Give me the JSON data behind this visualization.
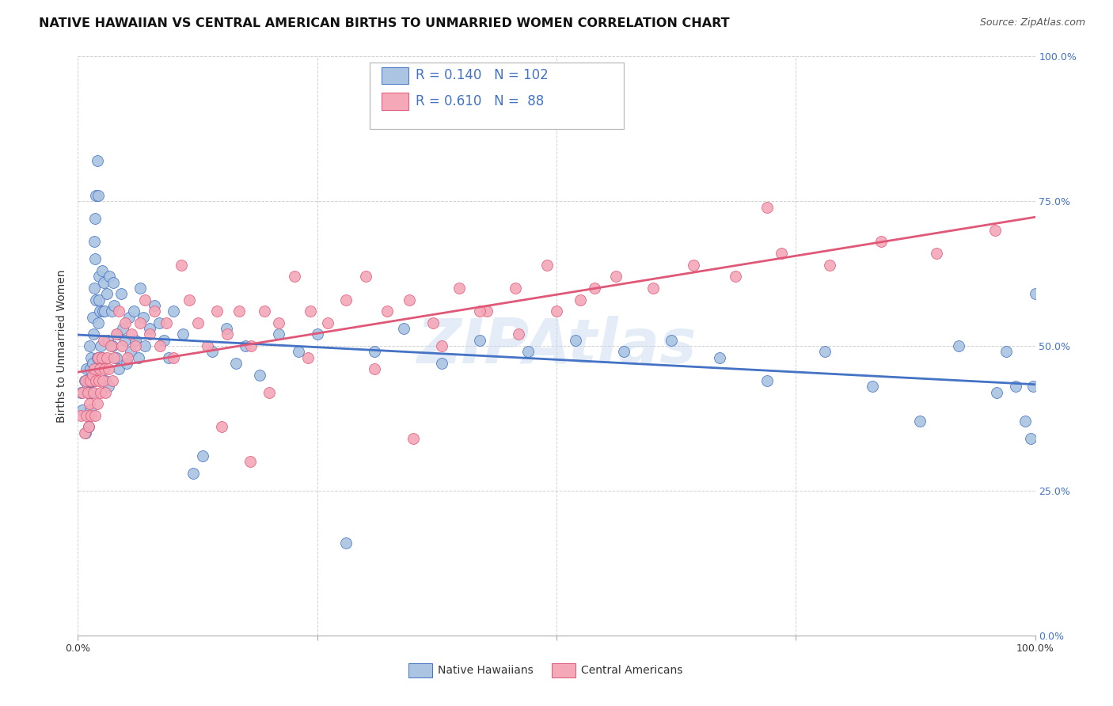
{
  "title": "NATIVE HAWAIIAN VS CENTRAL AMERICAN BIRTHS TO UNMARRIED WOMEN CORRELATION CHART",
  "source": "Source: ZipAtlas.com",
  "ylabel": "Births to Unmarried Women",
  "yticks_labels": [
    "0.0%",
    "25.0%",
    "50.0%",
    "75.0%",
    "100.0%"
  ],
  "ytick_vals": [
    0.0,
    0.25,
    0.5,
    0.75,
    1.0
  ],
  "legend_label1": "Native Hawaiians",
  "legend_label2": "Central Americans",
  "R1": 0.14,
  "N1": 102,
  "R2": 0.61,
  "N2": 88,
  "color1": "#aac4e2",
  "color2": "#f4a8b8",
  "line_color1": "#4472c4",
  "line_color2": "#e05878",
  "watermark": "ZIPAtlas",
  "background_color": "#ffffff",
  "title_fontsize": 11.5,
  "axis_label_fontsize": 10,
  "tick_fontsize": 9,
  "legend_fontsize": 11,
  "source_fontsize": 9,
  "xlim": [
    0.0,
    1.0
  ],
  "ylim": [
    0.0,
    1.0
  ],
  "nh_x": [
    0.003,
    0.005,
    0.007,
    0.008,
    0.009,
    0.01,
    0.01,
    0.01,
    0.011,
    0.011,
    0.012,
    0.012,
    0.013,
    0.013,
    0.014,
    0.014,
    0.015,
    0.015,
    0.016,
    0.016,
    0.017,
    0.017,
    0.018,
    0.018,
    0.019,
    0.019,
    0.02,
    0.02,
    0.021,
    0.021,
    0.022,
    0.022,
    0.023,
    0.024,
    0.025,
    0.025,
    0.026,
    0.027,
    0.028,
    0.029,
    0.03,
    0.031,
    0.032,
    0.033,
    0.035,
    0.036,
    0.037,
    0.038,
    0.04,
    0.041,
    0.043,
    0.045,
    0.047,
    0.049,
    0.051,
    0.053,
    0.055,
    0.058,
    0.06,
    0.063,
    0.065,
    0.068,
    0.07,
    0.075,
    0.08,
    0.085,
    0.09,
    0.095,
    0.1,
    0.11,
    0.12,
    0.13,
    0.14,
    0.155,
    0.165,
    0.175,
    0.19,
    0.21,
    0.23,
    0.25,
    0.28,
    0.31,
    0.34,
    0.38,
    0.42,
    0.47,
    0.52,
    0.57,
    0.62,
    0.67,
    0.72,
    0.78,
    0.83,
    0.88,
    0.92,
    0.96,
    0.97,
    0.98,
    0.99,
    0.995,
    0.998,
    1.0
  ],
  "nh_y": [
    0.42,
    0.39,
    0.44,
    0.35,
    0.46,
    0.38,
    0.43,
    0.42,
    0.36,
    0.44,
    0.5,
    0.42,
    0.46,
    0.39,
    0.48,
    0.42,
    0.55,
    0.47,
    0.52,
    0.44,
    0.68,
    0.6,
    0.72,
    0.65,
    0.76,
    0.58,
    0.82,
    0.48,
    0.76,
    0.54,
    0.62,
    0.58,
    0.56,
    0.5,
    0.63,
    0.48,
    0.56,
    0.61,
    0.56,
    0.44,
    0.59,
    0.51,
    0.43,
    0.62,
    0.56,
    0.5,
    0.61,
    0.57,
    0.48,
    0.52,
    0.46,
    0.59,
    0.53,
    0.51,
    0.47,
    0.55,
    0.49,
    0.56,
    0.51,
    0.48,
    0.6,
    0.55,
    0.5,
    0.53,
    0.57,
    0.54,
    0.51,
    0.48,
    0.56,
    0.52,
    0.28,
    0.31,
    0.49,
    0.53,
    0.47,
    0.5,
    0.45,
    0.52,
    0.49,
    0.52,
    0.16,
    0.49,
    0.53,
    0.47,
    0.51,
    0.49,
    0.51,
    0.49,
    0.51,
    0.48,
    0.44,
    0.49,
    0.43,
    0.37,
    0.5,
    0.42,
    0.49,
    0.43,
    0.37,
    0.34,
    0.43,
    0.59
  ],
  "ca_x": [
    0.003,
    0.005,
    0.007,
    0.008,
    0.009,
    0.01,
    0.011,
    0.012,
    0.013,
    0.014,
    0.015,
    0.016,
    0.017,
    0.018,
    0.019,
    0.02,
    0.021,
    0.022,
    0.023,
    0.024,
    0.025,
    0.026,
    0.027,
    0.028,
    0.029,
    0.03,
    0.032,
    0.034,
    0.036,
    0.038,
    0.04,
    0.043,
    0.046,
    0.049,
    0.052,
    0.056,
    0.06,
    0.065,
    0.07,
    0.075,
    0.08,
    0.086,
    0.092,
    0.1,
    0.108,
    0.116,
    0.125,
    0.135,
    0.145,
    0.156,
    0.168,
    0.181,
    0.195,
    0.21,
    0.226,
    0.243,
    0.261,
    0.28,
    0.301,
    0.323,
    0.346,
    0.371,
    0.398,
    0.427,
    0.457,
    0.49,
    0.525,
    0.562,
    0.601,
    0.643,
    0.687,
    0.735,
    0.785,
    0.839,
    0.897,
    0.958,
    0.38,
    0.42,
    0.46,
    0.5,
    0.54,
    0.2,
    0.24,
    0.31,
    0.35,
    0.15,
    0.18,
    0.72
  ],
  "ca_y": [
    0.38,
    0.42,
    0.35,
    0.44,
    0.38,
    0.42,
    0.36,
    0.4,
    0.44,
    0.38,
    0.45,
    0.42,
    0.46,
    0.38,
    0.44,
    0.4,
    0.48,
    0.44,
    0.46,
    0.42,
    0.48,
    0.44,
    0.51,
    0.46,
    0.42,
    0.48,
    0.46,
    0.5,
    0.44,
    0.48,
    0.52,
    0.56,
    0.5,
    0.54,
    0.48,
    0.52,
    0.5,
    0.54,
    0.58,
    0.52,
    0.56,
    0.5,
    0.54,
    0.48,
    0.64,
    0.58,
    0.54,
    0.5,
    0.56,
    0.52,
    0.56,
    0.5,
    0.56,
    0.54,
    0.62,
    0.56,
    0.54,
    0.58,
    0.62,
    0.56,
    0.58,
    0.54,
    0.6,
    0.56,
    0.6,
    0.64,
    0.58,
    0.62,
    0.6,
    0.64,
    0.62,
    0.66,
    0.64,
    0.68,
    0.66,
    0.7,
    0.5,
    0.56,
    0.52,
    0.56,
    0.6,
    0.42,
    0.48,
    0.46,
    0.34,
    0.36,
    0.3,
    0.74
  ]
}
